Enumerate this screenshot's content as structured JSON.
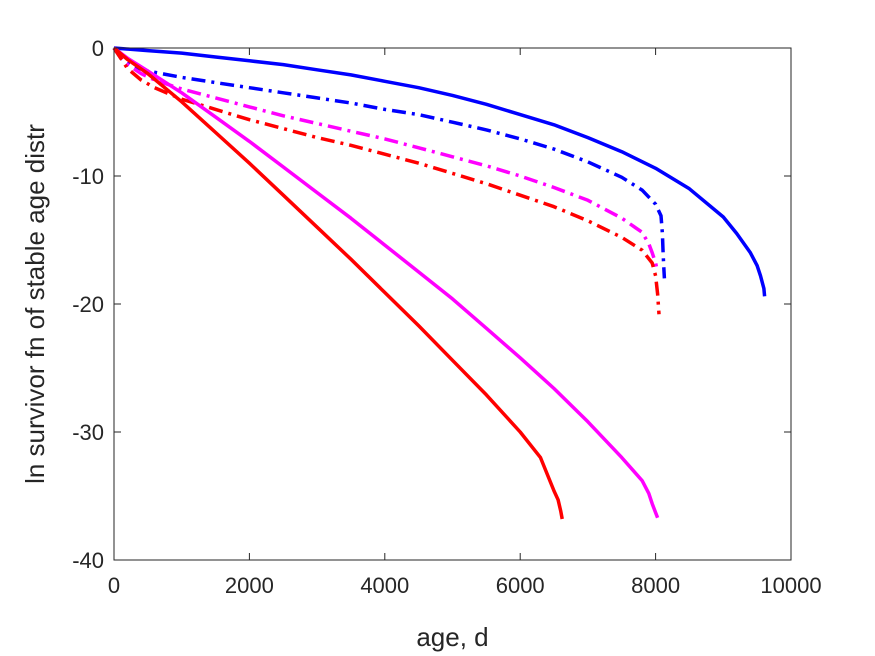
{
  "chart_data": {
    "type": "line",
    "title": "",
    "xlabel": "age, d",
    "ylabel": "ln survivor fn of stable age distr",
    "xlim": [
      0,
      10000
    ],
    "ylim": [
      -40,
      0
    ],
    "xticks": [
      0,
      2000,
      4000,
      6000,
      8000,
      10000
    ],
    "yticks": [
      0,
      -10,
      -20,
      -30,
      -40
    ],
    "xtick_labels": [
      "0",
      "2000",
      "4000",
      "6000",
      "8000",
      "10000"
    ],
    "ytick_labels": [
      "0",
      "-10",
      "-20",
      "-30",
      "-40"
    ],
    "grid": false,
    "legend": null,
    "series": [
      {
        "color": "#0000ff",
        "style": "solid",
        "x": [
          0,
          500,
          1000,
          1500,
          2000,
          2500,
          3000,
          3500,
          4000,
          4500,
          5000,
          5500,
          6000,
          6500,
          7000,
          7500,
          8000,
          8500,
          9000,
          9200,
          9400,
          9500,
          9550,
          9600,
          9610
        ],
        "y": [
          0,
          -0.2,
          -0.4,
          -0.7,
          -1.0,
          -1.3,
          -1.7,
          -2.1,
          -2.6,
          -3.1,
          -3.7,
          -4.4,
          -5.2,
          -6.0,
          -7.0,
          -8.1,
          -9.4,
          -11.0,
          -13.2,
          -14.5,
          -16.0,
          -17.0,
          -17.8,
          -18.8,
          -19.4
        ]
      },
      {
        "color": "#0000ff",
        "style": "dashdot",
        "x": [
          0,
          100,
          200,
          300,
          500,
          1000,
          1500,
          2000,
          2500,
          3000,
          3500,
          4000,
          4500,
          5000,
          5500,
          6000,
          6500,
          7000,
          7500,
          7800,
          8000,
          8080,
          8100,
          8110,
          8120,
          8130
        ],
        "y": [
          0,
          -0.8,
          -1.2,
          -1.5,
          -1.8,
          -2.3,
          -2.7,
          -3.1,
          -3.5,
          -3.9,
          -4.3,
          -4.8,
          -5.2,
          -5.8,
          -6.4,
          -7.1,
          -7.9,
          -8.9,
          -10.1,
          -11.1,
          -12.2,
          -13.1,
          -14.5,
          -15.8,
          -17.0,
          -18.0
        ]
      },
      {
        "color": "#ff00ff",
        "style": "dashdot",
        "x": [
          0,
          200,
          400,
          600,
          1000,
          1500,
          2000,
          2500,
          3000,
          3500,
          4000,
          4500,
          5000,
          5500,
          6000,
          6500,
          7000,
          7500,
          7800,
          7900,
          7950,
          8000,
          8030
        ],
        "y": [
          0,
          -1.3,
          -2.0,
          -2.5,
          -3.2,
          -3.9,
          -4.6,
          -5.3,
          -5.9,
          -6.5,
          -7.1,
          -7.8,
          -8.5,
          -9.2,
          -10.0,
          -10.9,
          -11.9,
          -13.3,
          -14.4,
          -15.3,
          -16.0,
          -16.8,
          -17.5
        ]
      },
      {
        "color": "#ff0000",
        "style": "dashdot",
        "x": [
          0,
          200,
          400,
          600,
          1000,
          1500,
          2000,
          2500,
          3000,
          3500,
          4000,
          4500,
          5000,
          5500,
          6000,
          6500,
          7000,
          7500,
          7800,
          7950,
          8000,
          8030,
          8050
        ],
        "y": [
          0,
          -1.6,
          -2.5,
          -3.1,
          -4.0,
          -4.8,
          -5.6,
          -6.3,
          -7.0,
          -7.6,
          -8.3,
          -9.0,
          -9.8,
          -10.6,
          -11.5,
          -12.4,
          -13.5,
          -14.8,
          -15.8,
          -16.8,
          -17.8,
          -19.2,
          -20.8
        ]
      },
      {
        "color": "#ff00ff",
        "style": "solid",
        "x": [
          0,
          200,
          500,
          1000,
          1500,
          2000,
          2500,
          3000,
          3500,
          4000,
          4500,
          5000,
          5500,
          6000,
          6500,
          7000,
          7500,
          7800,
          7900,
          7950,
          8000,
          8030
        ],
        "y": [
          0,
          -0.8,
          -1.8,
          -3.5,
          -5.4,
          -7.3,
          -9.3,
          -11.3,
          -13.3,
          -15.4,
          -17.5,
          -19.6,
          -21.9,
          -24.2,
          -26.6,
          -29.2,
          -32.0,
          -33.8,
          -34.8,
          -35.6,
          -36.3,
          -36.7
        ]
      },
      {
        "color": "#ff0000",
        "style": "solid",
        "x": [
          0,
          200,
          500,
          1000,
          1500,
          2000,
          2500,
          3000,
          3500,
          4000,
          4500,
          5000,
          5500,
          6000,
          6300,
          6500,
          6560,
          6600,
          6620
        ],
        "y": [
          0,
          -0.9,
          -2.0,
          -4.2,
          -6.6,
          -9.0,
          -11.5,
          -14.0,
          -16.5,
          -19.1,
          -21.7,
          -24.4,
          -27.1,
          -30.0,
          -32.0,
          -34.6,
          -35.3,
          -36.2,
          -36.8
        ]
      }
    ]
  }
}
